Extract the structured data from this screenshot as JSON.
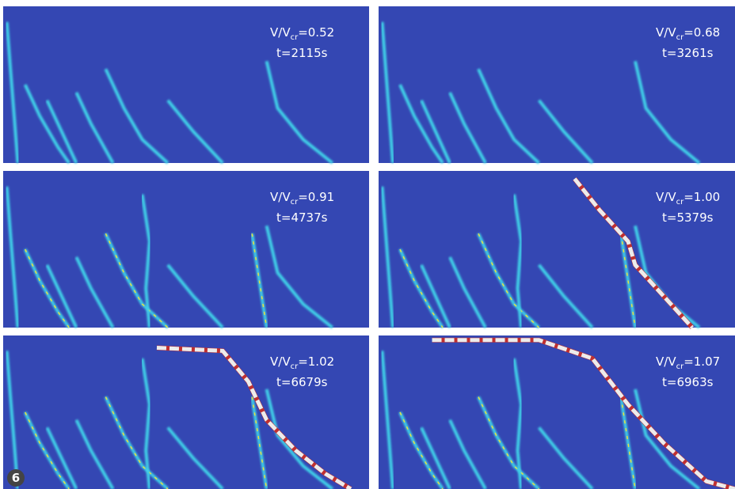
{
  "panels": [
    {
      "ratio": {
        "base": "V/V",
        "sub": "cr",
        "value": "=0.52"
      },
      "time": "t=2115s"
    },
    {
      "ratio": {
        "base": "V/V",
        "sub": "cr",
        "value": "=0.68"
      },
      "time": "t=3261s"
    },
    {
      "ratio": {
        "base": "V/V",
        "sub": "cr",
        "value": "=0.91"
      },
      "time": "t=4737s"
    },
    {
      "ratio": {
        "base": "V/V",
        "sub": "cr",
        "value": "=1.00"
      },
      "time": "t=5379s"
    },
    {
      "ratio": {
        "base": "V/V",
        "sub": "cr",
        "value": "=1.02"
      },
      "time": "t=6679s"
    },
    {
      "ratio": {
        "base": "V/V",
        "sub": "cr",
        "value": "=1.07"
      },
      "time": "t=6963s"
    }
  ],
  "badge": "6"
}
